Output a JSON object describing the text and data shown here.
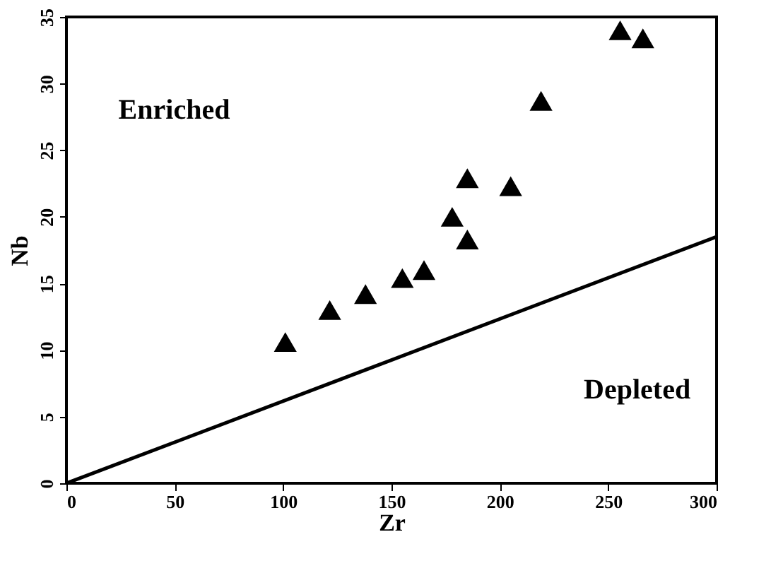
{
  "chart_data": {
    "type": "scatter",
    "xlabel": "Zr",
    "ylabel": "Nb",
    "xlim": [
      0,
      300
    ],
    "xticks": [
      0,
      50,
      100,
      150,
      200,
      250,
      300
    ],
    "ylim": [
      0,
      35
    ],
    "yticks": [
      0,
      5,
      10,
      15,
      20,
      25,
      30,
      35
    ],
    "grid": false,
    "series": [
      {
        "marker": "triangle",
        "color": "#000000",
        "x": [
          101,
          121.5,
          138,
          155,
          165,
          178,
          185,
          185,
          205,
          219,
          255.5,
          266
        ],
        "values": [
          10.6,
          13,
          14.2,
          15.4,
          16,
          20,
          22.9,
          18.3,
          22.3,
          28.7,
          34,
          33.4
        ]
      },
      {
        "type": "line",
        "marker": "none",
        "color": "#000000",
        "line_style": "solid",
        "x": [
          0,
          300
        ],
        "values": [
          0,
          18.5
        ]
      }
    ],
    "annotations": [
      "Enriched",
      "Depleted"
    ]
  }
}
